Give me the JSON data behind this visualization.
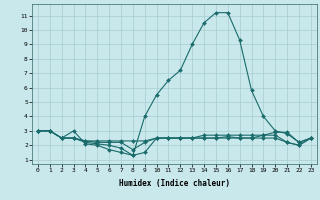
{
  "xlabel": "Humidex (Indice chaleur)",
  "background_color": "#c8e8ec",
  "grid_color": "#a8ccd0",
  "line_color": "#1a6b6b",
  "xlim_min": -0.5,
  "xlim_max": 23.5,
  "ylim_min": 0.7,
  "ylim_max": 11.8,
  "xticks": [
    0,
    1,
    2,
    3,
    4,
    5,
    6,
    7,
    8,
    9,
    10,
    11,
    12,
    13,
    14,
    15,
    16,
    17,
    18,
    19,
    20,
    21,
    22,
    23
  ],
  "yticks": [
    1,
    2,
    3,
    4,
    5,
    6,
    7,
    8,
    9,
    10,
    11
  ],
  "series": [
    [
      3.0,
      3.0,
      2.5,
      3.0,
      2.1,
      2.0,
      1.7,
      1.5,
      1.3,
      4.0,
      5.5,
      6.5,
      7.2,
      9.0,
      10.5,
      11.2,
      11.2,
      9.3,
      5.8,
      4.0,
      3.0,
      2.8,
      2.2,
      2.5
    ],
    [
      3.0,
      3.0,
      2.5,
      2.5,
      2.3,
      2.3,
      2.3,
      2.3,
      2.3,
      2.3,
      2.5,
      2.5,
      2.5,
      2.5,
      2.7,
      2.7,
      2.7,
      2.7,
      2.7,
      2.7,
      2.9,
      2.9,
      2.2,
      2.5
    ],
    [
      3.0,
      3.0,
      2.5,
      2.5,
      2.3,
      2.2,
      2.2,
      2.2,
      1.7,
      2.2,
      2.5,
      2.5,
      2.5,
      2.5,
      2.5,
      2.5,
      2.6,
      2.5,
      2.5,
      2.7,
      2.7,
      2.2,
      2.0,
      2.5
    ],
    [
      3.0,
      3.0,
      2.5,
      2.5,
      2.2,
      2.1,
      2.0,
      1.8,
      1.3,
      1.5,
      2.5,
      2.5,
      2.5,
      2.5,
      2.5,
      2.5,
      2.5,
      2.5,
      2.5,
      2.5,
      2.5,
      2.2,
      2.0,
      2.5
    ]
  ]
}
